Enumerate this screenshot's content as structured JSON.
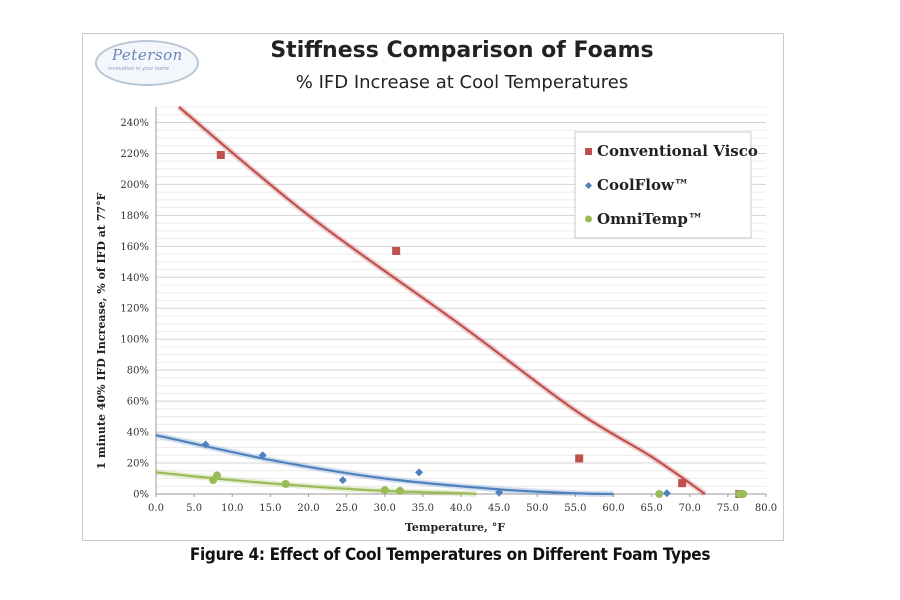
{
  "figure_caption": "Figure 4: Effect of Cool Temperatures on Different Foam Types",
  "logo": {
    "name": "Peterson",
    "tagline": "innovation in your home"
  },
  "chart_data": {
    "type": "scatter",
    "title": "Stiffness Comparison of Foams",
    "subtitle": "% IFD Increase at Cool Temperatures",
    "xlabel": "Temperature, °F",
    "ylabel": "1 minute 40% IFD Increase, % of IFD at 77°F",
    "xlim": [
      0,
      80
    ],
    "ylim": [
      0,
      250
    ],
    "x_ticks": [
      "0.0",
      "5.0",
      "10.0",
      "15.0",
      "20.0",
      "25.0",
      "30.0",
      "35.0",
      "40.0",
      "45.0",
      "50.0",
      "55.0",
      "60.0",
      "65.0",
      "70.0",
      "75.0",
      "80.0"
    ],
    "y_ticks": [
      "0%",
      "20%",
      "40%",
      "60%",
      "80%",
      "100%",
      "120%",
      "140%",
      "160%",
      "180%",
      "200%",
      "220%",
      "240%"
    ],
    "grid": true,
    "legend_position": "top-right",
    "series": [
      {
        "name": "Conventional Visco",
        "color": "#c0504d",
        "marker": "square",
        "points": [
          [
            8.5,
            219
          ],
          [
            31.5,
            157
          ],
          [
            55.5,
            23
          ],
          [
            69,
            7
          ],
          [
            76.5,
            0
          ]
        ],
        "trend": [
          [
            3,
            250
          ],
          [
            20,
            180
          ],
          [
            40,
            109
          ],
          [
            55,
            54
          ],
          [
            65,
            24
          ],
          [
            72,
            0
          ]
        ]
      },
      {
        "name": "CoolFlow™",
        "color": "#4f81bd",
        "marker": "diamond",
        "points": [
          [
            6.5,
            32
          ],
          [
            14,
            25
          ],
          [
            24.5,
            9
          ],
          [
            34.5,
            14
          ],
          [
            45,
            1
          ],
          [
            67,
            0.5
          ],
          [
            76.5,
            0
          ]
        ],
        "trend": [
          [
            0,
            38
          ],
          [
            15,
            22
          ],
          [
            30,
            10
          ],
          [
            45,
            3
          ],
          [
            55,
            0.5
          ],
          [
            60,
            0
          ]
        ]
      },
      {
        "name": "OmniTemp™",
        "color": "#9bbb59",
        "marker": "circle",
        "points": [
          [
            7.5,
            9
          ],
          [
            8,
            12
          ],
          [
            17,
            6.5
          ],
          [
            30,
            2.5
          ],
          [
            32,
            2
          ],
          [
            66,
            0
          ],
          [
            76.5,
            0
          ],
          [
            77,
            0
          ]
        ],
        "trend": [
          [
            0,
            14
          ],
          [
            10,
            9
          ],
          [
            20,
            5
          ],
          [
            30,
            2
          ],
          [
            40,
            0.5
          ],
          [
            42,
            0
          ]
        ]
      }
    ]
  }
}
